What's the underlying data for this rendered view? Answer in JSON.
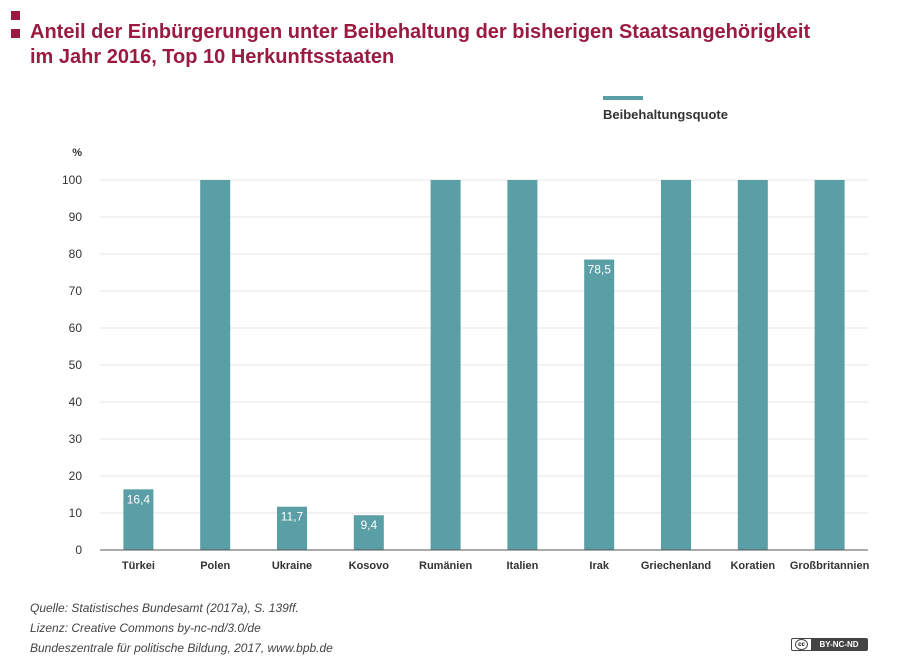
{
  "colors": {
    "accent": "#9a1b3f",
    "bar": "#5a9ea6",
    "grid": "#e6e6e6",
    "axis": "#555555",
    "text": "#333333"
  },
  "header": {
    "title_line1": "Anteil der Einbürgerungen unter Beibehaltung der bisherigen Staatsangehörigkeit",
    "title_line2": "im Jahr 2016, Top 10 Herkunftsstaaten"
  },
  "chart_data": {
    "type": "bar",
    "title": "Anteil der Einbürgerungen unter Beibehaltung der bisherigen Staatsangehörigkeit im Jahr 2016, Top 10 Herkunftsstaaten",
    "ylabel": "%",
    "xlabel": "",
    "ylim": [
      0,
      100
    ],
    "yticks": [
      0,
      10,
      20,
      30,
      40,
      50,
      60,
      70,
      80,
      90,
      100
    ],
    "grid": true,
    "legend_position": "top-right",
    "categories": [
      "Türkei",
      "Polen",
      "Ukraine",
      "Kosovo",
      "Rumänien",
      "Italien",
      "Irak",
      "Griechenland",
      "Koratien",
      "Großbritannien"
    ],
    "series": [
      {
        "name": "Beibehaltungsquote",
        "values": [
          16.4,
          100,
          11.7,
          9.4,
          100,
          100,
          78.5,
          100,
          100,
          100
        ],
        "data_labels": [
          "16,4",
          "",
          "11,7",
          "9,4",
          "",
          "",
          "78,5",
          "",
          "",
          ""
        ]
      }
    ]
  },
  "footer": {
    "source": "Quelle: Statistisches Bundesamt (2017a), S. 139ff.",
    "license": "Lizenz: Creative Commons by-nc-nd/3.0/de",
    "publisher": "Bundeszentrale für politische Bildung, 2017, www.bpb.de",
    "badge_text": "BY-NC-ND",
    "badge_logo": "cc"
  }
}
